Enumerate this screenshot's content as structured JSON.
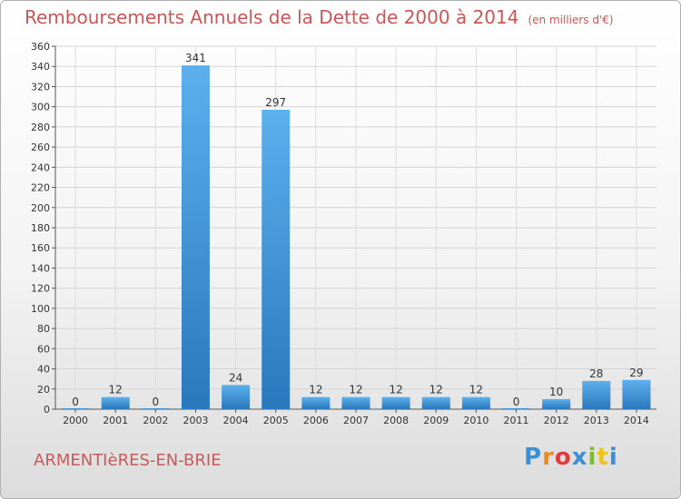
{
  "header": {
    "title": "Remboursements Annuels de la Dette de 2000 à 2014",
    "unit": "(en milliers d'€)"
  },
  "footer": {
    "commune": "ARMENTIèRES-EN-BRIE",
    "logo": [
      "P",
      "r",
      "o",
      "x",
      "i",
      "t",
      "i"
    ],
    "logo_colors": [
      "#3a8fd6",
      "#f08a1e",
      "#e23b3b",
      "#3a8fd6",
      "#7cbf2e",
      "#f0c21e",
      "#3a8fd6"
    ]
  },
  "chart_data": {
    "type": "bar",
    "title": "Remboursements Annuels de la Dette de 2000 à 2014",
    "xlabel": "",
    "ylabel": "",
    "categories": [
      "2000",
      "2001",
      "2002",
      "2003",
      "2004",
      "2005",
      "2006",
      "2007",
      "2008",
      "2009",
      "2010",
      "2011",
      "2012",
      "2013",
      "2014"
    ],
    "values": [
      0,
      12,
      0,
      341,
      24,
      297,
      12,
      12,
      12,
      12,
      12,
      0,
      10,
      28,
      29
    ],
    "ylim": [
      0,
      360
    ],
    "yticks": [
      0,
      20,
      40,
      60,
      80,
      100,
      120,
      140,
      160,
      180,
      200,
      220,
      240,
      260,
      280,
      300,
      320,
      340,
      360
    ],
    "grid": true,
    "bar_color": "#3d92d8"
  }
}
